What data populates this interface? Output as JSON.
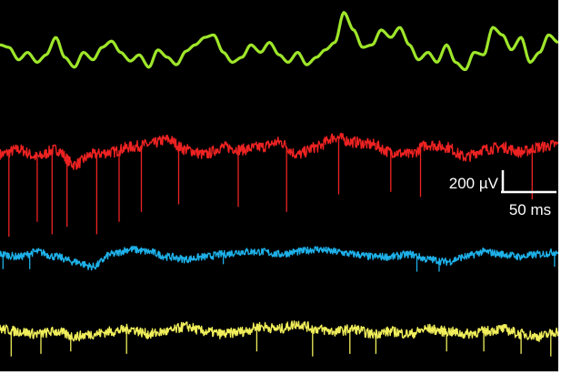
{
  "chart_data": {
    "type": "line",
    "title": "",
    "xlabel": "",
    "ylabel": "",
    "grid": false,
    "legend": "none",
    "x_unit": "ms",
    "y_unit": "µV",
    "background": "#000000",
    "scale_bar": {
      "amplitude_label": "200 µV",
      "amplitude_value": 200,
      "time_label": "50 ms",
      "time_value": 50,
      "color": "#ffffff"
    },
    "series": [
      {
        "color": "#9ee62a",
        "noise": 0,
        "spikes": [],
        "x": [
          0,
          12,
          25,
          37,
          50,
          62,
          75,
          87,
          100,
          112,
          125,
          137,
          150,
          162,
          175,
          187,
          200,
          212,
          225,
          237,
          250,
          262,
          275,
          287,
          300,
          312,
          325,
          337,
          350,
          362,
          375,
          387,
          400,
          412,
          425,
          437,
          450,
          462,
          475,
          487,
          500,
          512,
          525,
          537,
          550,
          562,
          575,
          587,
          600,
          612,
          625,
          637,
          650,
          662,
          675,
          687,
          700,
          712,
          725,
          737,
          750
        ],
        "values": [
          820,
          800,
          700,
          760,
          680,
          740,
          880,
          720,
          640,
          760,
          700,
          800,
          850,
          760,
          690,
          740,
          640,
          780,
          720,
          660,
          770,
          820,
          880,
          900,
          760,
          680,
          720,
          820,
          760,
          840,
          740,
          680,
          760,
          660,
          720,
          780,
          840,
          1080,
          940,
          800,
          820,
          940,
          880,
          960,
          820,
          700,
          760,
          680,
          820,
          680,
          620,
          760,
          740,
          960,
          900,
          780,
          880,
          680,
          760,
          900,
          840
        ]
      },
      {
        "color": "#ee2222",
        "noise": 45,
        "spikes": [
          {
            "x": 12,
            "value": -720
          },
          {
            "x": 50,
            "value": -600
          },
          {
            "x": 70,
            "value": -700
          },
          {
            "x": 90,
            "value": -640
          },
          {
            "x": 130,
            "value": -700
          },
          {
            "x": 160,
            "value": -600
          },
          {
            "x": 190,
            "value": -520
          },
          {
            "x": 240,
            "value": -460
          },
          {
            "x": 320,
            "value": -480
          },
          {
            "x": 385,
            "value": -520
          },
          {
            "x": 455,
            "value": -380
          },
          {
            "x": 525,
            "value": -360
          },
          {
            "x": 565,
            "value": -400
          },
          {
            "x": 715,
            "value": -420
          }
        ],
        "x": [
          0,
          25,
          50,
          75,
          100,
          125,
          150,
          175,
          200,
          225,
          250,
          275,
          300,
          325,
          350,
          375,
          400,
          425,
          450,
          475,
          500,
          525,
          550,
          575,
          600,
          625,
          650,
          675,
          700,
          725,
          750
        ],
        "values": [
          -60,
          -20,
          -80,
          -20,
          -140,
          -60,
          -40,
          0,
          20,
          60,
          -20,
          -60,
          0,
          -20,
          0,
          40,
          -60,
          0,
          80,
          40,
          20,
          -40,
          -60,
          20,
          0,
          -80,
          -20,
          0,
          -40,
          0,
          20
        ]
      },
      {
        "color": "#1eb0e8",
        "noise": 30,
        "spikes": [
          {
            "x": 4,
            "value": -980
          },
          {
            "x": 40,
            "value": -980
          },
          {
            "x": 300,
            "value": -940
          },
          {
            "x": 560,
            "value": -1000
          },
          {
            "x": 590,
            "value": -1000
          },
          {
            "x": 745,
            "value": -960
          }
        ],
        "x": [
          0,
          25,
          50,
          75,
          100,
          125,
          150,
          175,
          200,
          225,
          250,
          275,
          300,
          325,
          350,
          375,
          400,
          425,
          450,
          475,
          500,
          525,
          550,
          575,
          600,
          625,
          650,
          675,
          700,
          725,
          750
        ],
        "values": [
          -860,
          -880,
          -840,
          -880,
          -920,
          -960,
          -860,
          -820,
          -840,
          -880,
          -900,
          -880,
          -860,
          -840,
          -840,
          -860,
          -840,
          -820,
          -840,
          -860,
          -880,
          -880,
          -860,
          -900,
          -920,
          -880,
          -840,
          -860,
          -880,
          -860,
          -840
        ]
      },
      {
        "color": "#f0ee5a",
        "noise": 40,
        "spikes": [
          {
            "x": 15,
            "value": -1680
          },
          {
            "x": 55,
            "value": -1660
          },
          {
            "x": 95,
            "value": -1640
          },
          {
            "x": 170,
            "value": -1660
          },
          {
            "x": 345,
            "value": -1640
          },
          {
            "x": 420,
            "value": -1680
          },
          {
            "x": 470,
            "value": -1660
          },
          {
            "x": 505,
            "value": -1660
          },
          {
            "x": 600,
            "value": -1640
          },
          {
            "x": 650,
            "value": -1640
          },
          {
            "x": 700,
            "value": -1660
          },
          {
            "x": 740,
            "value": -1680
          }
        ],
        "x": [
          0,
          25,
          50,
          75,
          100,
          125,
          150,
          175,
          200,
          225,
          250,
          275,
          300,
          325,
          350,
          375,
          400,
          425,
          450,
          475,
          500,
          525,
          550,
          575,
          600,
          625,
          650,
          675,
          700,
          725,
          750
        ],
        "values": [
          -1460,
          -1480,
          -1500,
          -1480,
          -1520,
          -1500,
          -1480,
          -1460,
          -1500,
          -1480,
          -1440,
          -1480,
          -1500,
          -1480,
          -1440,
          -1460,
          -1420,
          -1460,
          -1480,
          -1460,
          -1500,
          -1480,
          -1500,
          -1460,
          -1480,
          -1500,
          -1480,
          -1460,
          -1500,
          -1520,
          -1480
        ]
      }
    ]
  }
}
